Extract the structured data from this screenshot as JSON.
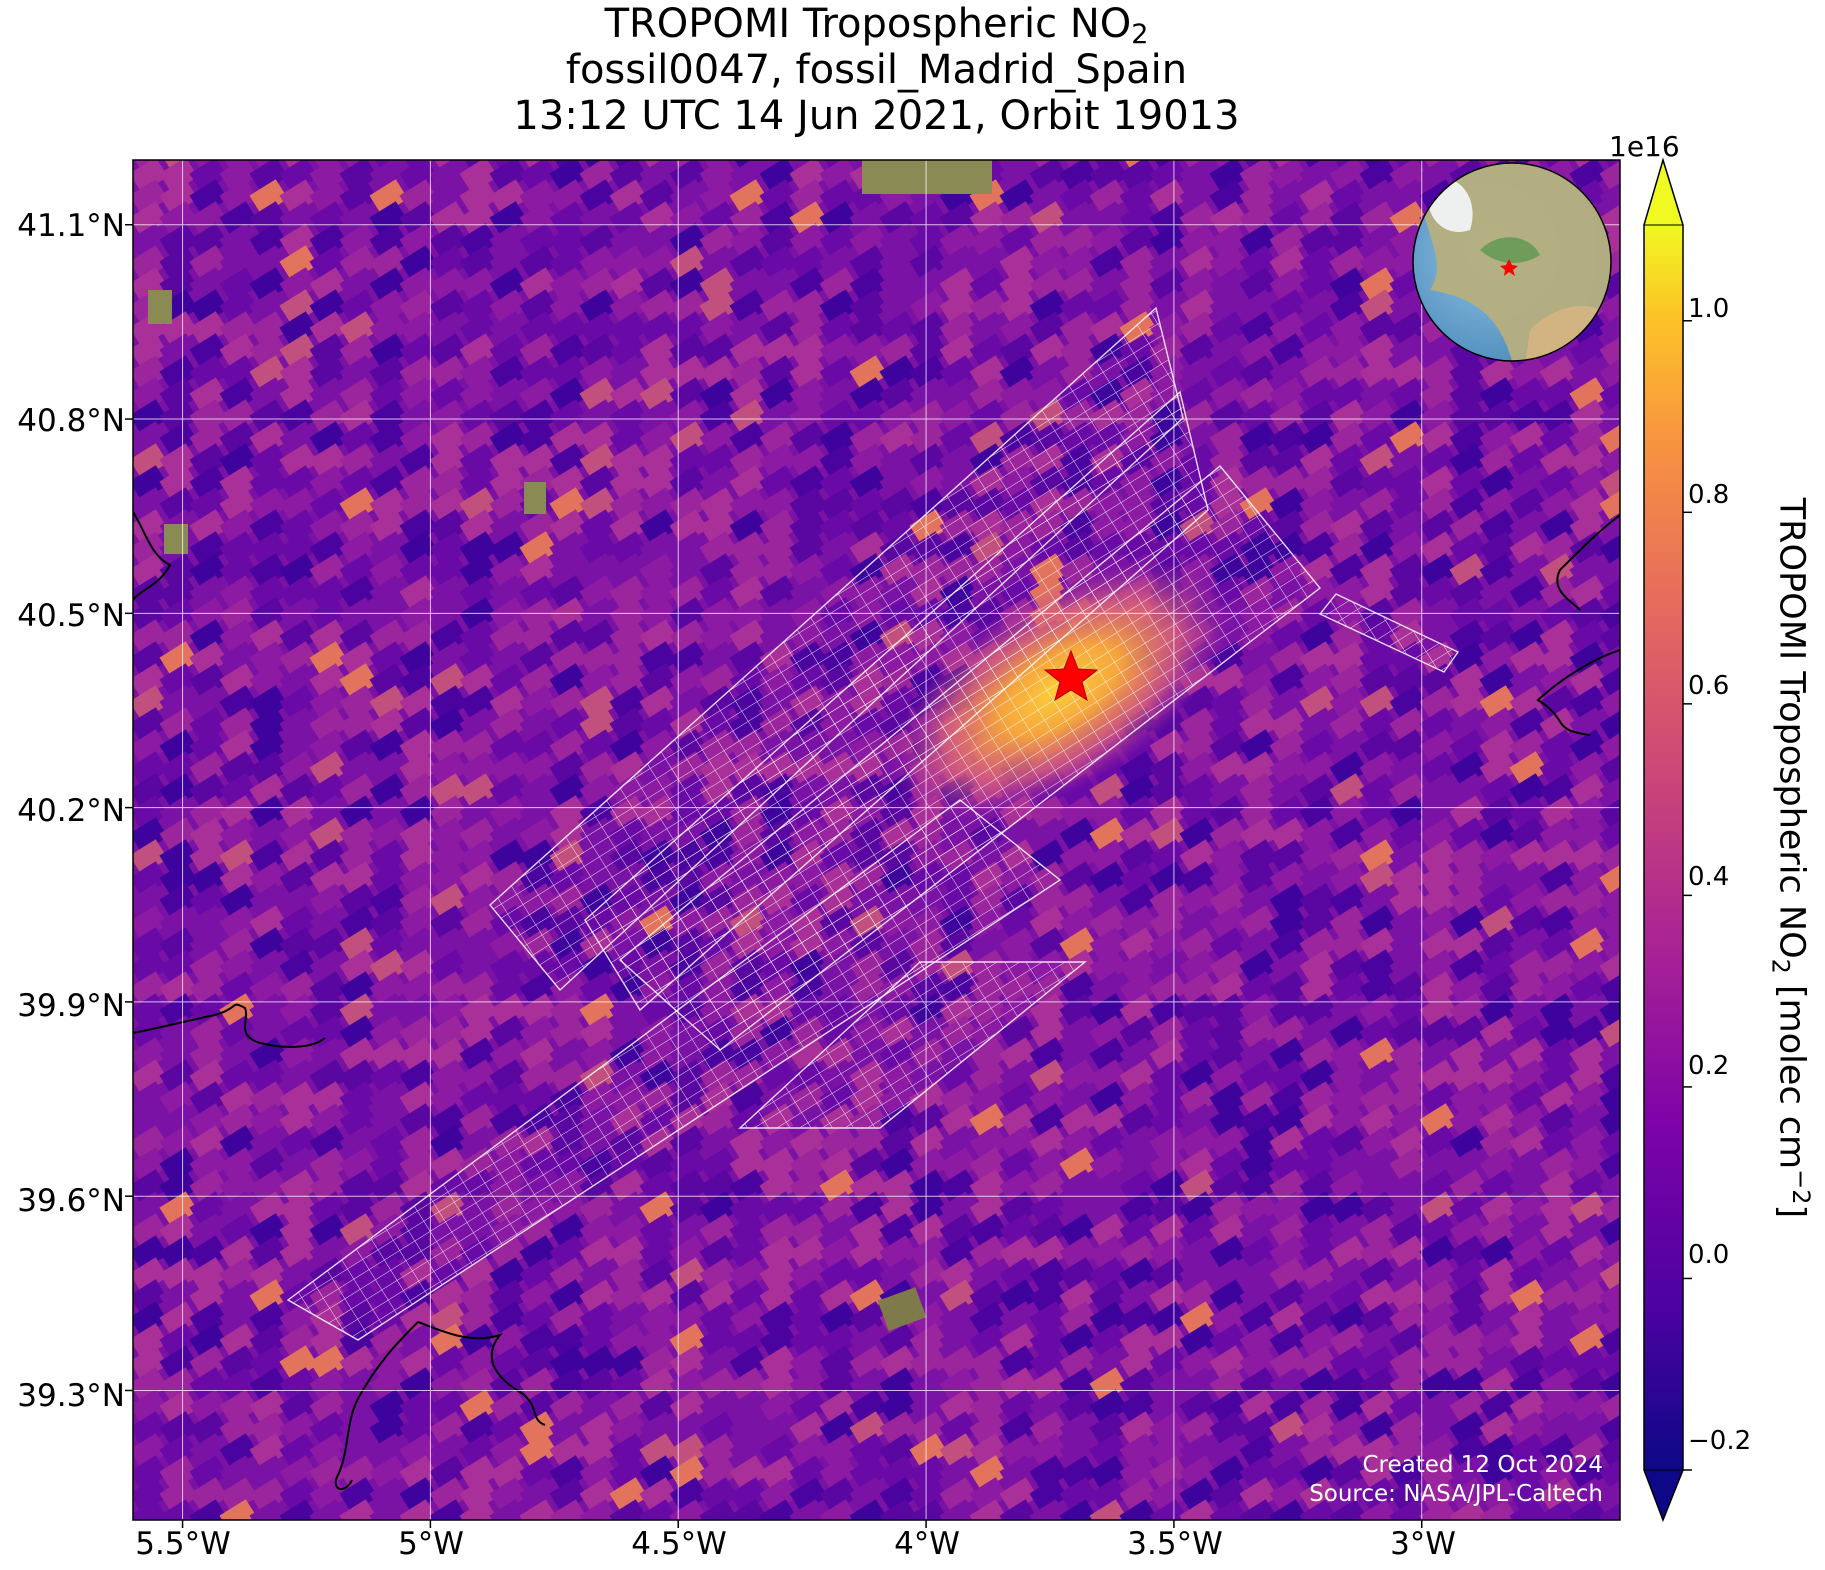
{
  "title": {
    "line1_prefix": "TROPOMI Tropospheric NO",
    "line1_sub": "2",
    "line2": "fossil0047, fossil_Madrid_Spain",
    "line3": "13:12 UTC 14 Jun 2021, Orbit 19013"
  },
  "map": {
    "lat_ticks": [
      "41.1°N",
      "40.8°N",
      "40.5°N",
      "40.2°N",
      "39.9°N",
      "39.6°N",
      "39.3°N"
    ],
    "lon_ticks": [
      "5.5°W",
      "5°W",
      "4.5°W",
      "4°W",
      "3.5°W",
      "3°W"
    ],
    "lat_range": [
      39.1,
      41.2
    ],
    "lon_range": [
      -5.6,
      -2.6
    ],
    "site_marker": "red-star",
    "background_color": "#7a12a4",
    "grid": true
  },
  "colorbar": {
    "exponent": "1e16",
    "ticks": [
      "1.0",
      "0.8",
      "0.6",
      "0.4",
      "0.2",
      "0.0",
      "−0.2"
    ],
    "label_prefix": "TROPOMI Tropospheric NO",
    "label_sub": "2",
    "label_mid": " [molec cm",
    "label_sup": "−2",
    "label_suffix": "]",
    "colormap": "plasma",
    "range": [
      -0.2,
      1.1
    ]
  },
  "credit": {
    "created": "Created 12 Oct 2024",
    "source": "Source: NASA/JPL-Caltech"
  }
}
